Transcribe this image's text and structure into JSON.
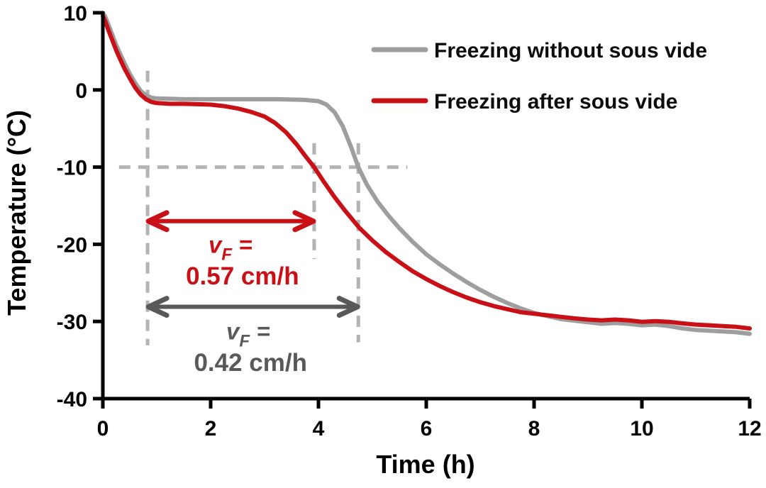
{
  "figure": {
    "background": "#ffffff"
  },
  "axes": {
    "xlabel": "Time (h)",
    "ylabel": "Temperature (°C)"
  },
  "legend": {
    "position": "top-right",
    "items": [
      {
        "label": "Freezing without sous vide",
        "color": "#9e9e9e"
      },
      {
        "label": "Freezing after sous vide",
        "color": "#c81016"
      }
    ]
  },
  "chart_data": {
    "type": "line",
    "title": "",
    "xlabel": "Time (h)",
    "ylabel": "Temperature (°C)",
    "xlim": [
      0,
      12
    ],
    "ylim": [
      -40,
      10
    ],
    "xticks": [
      0,
      2,
      4,
      6,
      8,
      10,
      12
    ],
    "yticks": [
      10,
      0,
      -10,
      -20,
      -30,
      -40
    ],
    "grid": false,
    "legend_position": "top-right",
    "series": [
      {
        "name": "Freezing without sous vide",
        "color": "#9e9e9e",
        "points": [
          [
            0,
            10
          ],
          [
            0.05,
            9.4
          ],
          [
            0.1,
            8.5
          ],
          [
            0.15,
            7.6
          ],
          [
            0.2,
            6.7
          ],
          [
            0.25,
            5.8
          ],
          [
            0.3,
            5.0
          ],
          [
            0.4,
            3.5
          ],
          [
            0.5,
            2.1
          ],
          [
            0.6,
            0.9
          ],
          [
            0.7,
            -0.1
          ],
          [
            0.8,
            -0.7
          ],
          [
            0.9,
            -1.0
          ],
          [
            1,
            -1.1
          ],
          [
            1.25,
            -1.15
          ],
          [
            1.5,
            -1.2
          ],
          [
            1.75,
            -1.2
          ],
          [
            2,
            -1.2
          ],
          [
            2.25,
            -1.2
          ],
          [
            2.5,
            -1.2
          ],
          [
            2.75,
            -1.2
          ],
          [
            3,
            -1.2
          ],
          [
            3.25,
            -1.2
          ],
          [
            3.5,
            -1.25
          ],
          [
            3.75,
            -1.3
          ],
          [
            4,
            -1.45
          ],
          [
            4.15,
            -1.9
          ],
          [
            4.3,
            -2.9
          ],
          [
            4.45,
            -4.7
          ],
          [
            4.6,
            -7.3
          ],
          [
            4.74,
            -10
          ],
          [
            4.9,
            -12.3
          ],
          [
            5.1,
            -14.5
          ],
          [
            5.3,
            -16.3
          ],
          [
            5.5,
            -17.9
          ],
          [
            5.75,
            -19.7
          ],
          [
            6,
            -21.3
          ],
          [
            6.25,
            -22.6
          ],
          [
            6.5,
            -23.8
          ],
          [
            6.75,
            -24.9
          ],
          [
            7,
            -25.9
          ],
          [
            7.25,
            -26.8
          ],
          [
            7.5,
            -27.6
          ],
          [
            7.75,
            -28.3
          ],
          [
            8,
            -28.9
          ],
          [
            8.25,
            -29.3
          ],
          [
            8.5,
            -29.7
          ],
          [
            8.75,
            -29.9
          ],
          [
            9,
            -30.1
          ],
          [
            9.25,
            -30.3
          ],
          [
            9.5,
            -30.2
          ],
          [
            9.75,
            -30.3
          ],
          [
            10,
            -30.5
          ],
          [
            10.25,
            -30.4
          ],
          [
            10.5,
            -30.6
          ],
          [
            10.75,
            -30.9
          ],
          [
            11,
            -31.1
          ],
          [
            11.25,
            -31.2
          ],
          [
            11.5,
            -31.3
          ],
          [
            11.75,
            -31.4
          ],
          [
            12,
            -31.6
          ]
        ]
      },
      {
        "name": "Freezing after sous vide",
        "color": "#c81016",
        "points": [
          [
            0,
            9.6
          ],
          [
            0.05,
            8.8
          ],
          [
            0.1,
            7.8
          ],
          [
            0.15,
            6.9
          ],
          [
            0.2,
            6.0
          ],
          [
            0.25,
            5.1
          ],
          [
            0.3,
            4.3
          ],
          [
            0.4,
            2.8
          ],
          [
            0.5,
            1.5
          ],
          [
            0.6,
            0.3
          ],
          [
            0.7,
            -0.6
          ],
          [
            0.8,
            -1.2
          ],
          [
            0.9,
            -1.55
          ],
          [
            1,
            -1.7
          ],
          [
            1.25,
            -1.8
          ],
          [
            1.5,
            -1.8
          ],
          [
            1.75,
            -1.85
          ],
          [
            2,
            -1.9
          ],
          [
            2.25,
            -2.1
          ],
          [
            2.5,
            -2.4
          ],
          [
            2.75,
            -2.85
          ],
          [
            3,
            -3.45
          ],
          [
            3.2,
            -4.3
          ],
          [
            3.4,
            -5.5
          ],
          [
            3.6,
            -7.1
          ],
          [
            3.75,
            -8.5
          ],
          [
            3.92,
            -10
          ],
          [
            4.1,
            -11.9
          ],
          [
            4.3,
            -13.9
          ],
          [
            4.5,
            -15.7
          ],
          [
            4.75,
            -17.8
          ],
          [
            5,
            -19.5
          ],
          [
            5.25,
            -21.0
          ],
          [
            5.5,
            -22.3
          ],
          [
            5.75,
            -23.5
          ],
          [
            6,
            -24.5
          ],
          [
            6.25,
            -25.4
          ],
          [
            6.5,
            -26.2
          ],
          [
            6.75,
            -26.9
          ],
          [
            7,
            -27.5
          ],
          [
            7.25,
            -28.0
          ],
          [
            7.5,
            -28.4
          ],
          [
            7.75,
            -28.8
          ],
          [
            8,
            -29.0
          ],
          [
            8.25,
            -29.2
          ],
          [
            8.5,
            -29.4
          ],
          [
            8.75,
            -29.6
          ],
          [
            9,
            -29.75
          ],
          [
            9.25,
            -29.85
          ],
          [
            9.5,
            -29.75
          ],
          [
            9.75,
            -29.85
          ],
          [
            10,
            -30.05
          ],
          [
            10.25,
            -29.95
          ],
          [
            10.5,
            -30.05
          ],
          [
            10.75,
            -30.25
          ],
          [
            11,
            -30.4
          ],
          [
            11.25,
            -30.5
          ],
          [
            11.5,
            -30.6
          ],
          [
            11.75,
            -30.7
          ],
          [
            12,
            -30.9
          ]
        ]
      }
    ],
    "annotations": {
      "horizontal_dashed_line": {
        "temp_c": -10,
        "t_start_h": 0.3,
        "t_end_h": 5.65,
        "color": "#b3b3b3"
      },
      "vertical_dashed_lines": [
        {
          "t_h": 0.83,
          "temp_top_c": 2.5,
          "temp_bottom_c": -33.1,
          "color": "#b3b3b3"
        },
        {
          "t_h": 3.92,
          "temp_top_c": -6.9,
          "temp_bottom_c": -21.9,
          "color": "#b3b3b3"
        },
        {
          "t_h": 4.74,
          "temp_top_c": -6.9,
          "temp_bottom_c": -32.7,
          "color": "#b3b3b3"
        }
      ],
      "arrows": [
        {
          "t1_h": 0.83,
          "t2_h": 3.92,
          "temp_c": -17.0,
          "color": "#c81016"
        },
        {
          "t1_h": 0.83,
          "t2_h": 4.74,
          "temp_c": -28.1,
          "color": "#595959"
        }
      ],
      "labels": [
        {
          "id": "ann-red-line1",
          "t_h": 2.37,
          "temp_c": -20.1,
          "color": "#c81016",
          "var": "v",
          "sub": "F",
          "eq": "="
        },
        {
          "id": "ann-red-line2",
          "t_h": 2.59,
          "temp_c": -24.2,
          "color": "#c81016",
          "text": "0.57 cm/h"
        },
        {
          "id": "ann-gray-line1",
          "t_h": 2.7,
          "temp_c": -31.3,
          "color": "#595959",
          "var": "v",
          "sub": "F",
          "eq": "="
        },
        {
          "id": "ann-gray-line2",
          "t_h": 2.74,
          "temp_c": -35.4,
          "color": "#595959",
          "text": "0.42 cm/h"
        }
      ],
      "freezing_rates": [
        {
          "series": "Freezing after sous vide",
          "v_F": "0.57 cm/h"
        },
        {
          "series": "Freezing without sous vide",
          "v_F": "0.42 cm/h"
        }
      ]
    }
  }
}
